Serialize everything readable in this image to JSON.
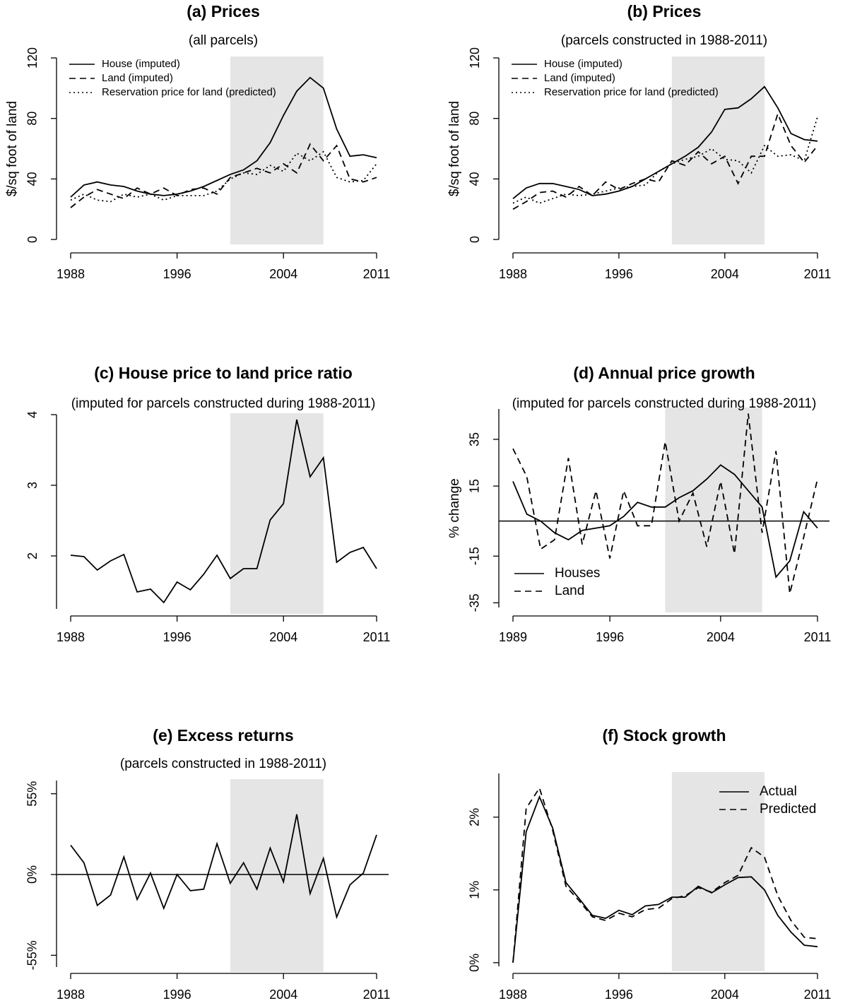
{
  "chart_data": [
    {
      "type": "line",
      "title": "(a) Prices",
      "subtitle": "(all parcels)",
      "y_label": "$/sq foot of land",
      "x": [
        1988,
        1989,
        1990,
        1991,
        1992,
        1993,
        1994,
        1995,
        1996,
        1997,
        1998,
        1999,
        2000,
        2001,
        2002,
        2003,
        2004,
        2005,
        2006,
        2007,
        2008,
        2009,
        2010,
        2011
      ],
      "series": [
        {
          "name": "House (imputed)",
          "color": "#000000",
          "linestyle": "solid",
          "values": [
            28,
            36,
            38,
            36,
            35,
            32,
            30,
            29,
            30,
            32,
            35,
            39,
            43,
            46,
            52,
            64,
            82,
            98,
            107,
            100,
            73,
            55,
            56,
            54
          ]
        },
        {
          "name": "Land (imputed)",
          "color": "#000000",
          "linestyle": "dashed",
          "values": [
            21,
            28,
            33,
            30,
            27,
            34,
            30,
            34,
            29,
            33,
            34,
            30,
            41,
            44,
            47,
            44,
            50,
            44,
            63,
            52,
            62,
            40,
            38,
            41
          ]
        },
        {
          "name": "Reservation price for land (predicted)",
          "color": "#000000",
          "linestyle": "dotted",
          "values": [
            26,
            30,
            26,
            25,
            30,
            28,
            30,
            26,
            29,
            29,
            29,
            32,
            40,
            44,
            43,
            49,
            45,
            57,
            52,
            58,
            41,
            38,
            39,
            50
          ]
        }
      ],
      "xlim": [
        1988,
        2011
      ],
      "xticks": [
        1988,
        1996,
        2004,
        2011
      ],
      "ylim": [
        0,
        120
      ],
      "yticks": [
        0,
        40,
        80,
        120
      ],
      "shaded_range": [
        2000,
        2007
      ],
      "legend": "topleft"
    },
    {
      "type": "line",
      "title": "(b) Prices",
      "subtitle": "(parcels constructed in 1988-2011)",
      "y_label": "$/sq foot of land",
      "x": [
        1988,
        1989,
        1990,
        1991,
        1992,
        1993,
        1994,
        1995,
        1996,
        1997,
        1998,
        1999,
        2000,
        2001,
        2002,
        2003,
        2004,
        2005,
        2006,
        2007,
        2008,
        2009,
        2010,
        2011
      ],
      "series": [
        {
          "name": "House (imputed)",
          "color": "#000000",
          "linestyle": "solid",
          "values": [
            27,
            34,
            37,
            37,
            35,
            33,
            29,
            30,
            32,
            35,
            40,
            45,
            50,
            55,
            61,
            71,
            86,
            87,
            93,
            101,
            87,
            70,
            66,
            65
          ]
        },
        {
          "name": "Land (imputed)",
          "color": "#000000",
          "linestyle": "dashed",
          "values": [
            20,
            25,
            31,
            32,
            28,
            35,
            29,
            38,
            33,
            37,
            40,
            38,
            52,
            49,
            58,
            50,
            55,
            37,
            55,
            55,
            83,
            62,
            51,
            62
          ]
        },
        {
          "name": "Reservation price for land (predicted)",
          "color": "#000000",
          "linestyle": "dotted",
          "values": [
            24,
            28,
            24,
            27,
            30,
            29,
            30,
            32,
            34,
            35,
            36,
            45,
            50,
            53,
            55,
            60,
            53,
            52,
            44,
            62,
            55,
            56,
            52,
            81
          ]
        }
      ],
      "xlim": [
        1988,
        2011
      ],
      "xticks": [
        1988,
        1996,
        2004,
        2011
      ],
      "ylim": [
        0,
        120
      ],
      "yticks": [
        0,
        40,
        80,
        120
      ],
      "shaded_range": [
        2000,
        2007
      ],
      "legend": "topleft"
    },
    {
      "type": "line",
      "title": "(c) House price to land price ratio",
      "subtitle": "(imputed for parcels constructed during 1988-2011)",
      "x": [
        1988,
        1989,
        1990,
        1991,
        1992,
        1993,
        1994,
        1995,
        1996,
        1997,
        1998,
        1999,
        2000,
        2001,
        2002,
        2003,
        2004,
        2005,
        2006,
        2007,
        2008,
        2009,
        2010,
        2011
      ],
      "series": [
        {
          "color": "#000000",
          "linestyle": "solid",
          "values": [
            2.01,
            1.99,
            1.8,
            1.93,
            2.02,
            1.49,
            1.53,
            1.34,
            1.63,
            1.52,
            1.74,
            2.01,
            1.68,
            1.82,
            1.82,
            2.51,
            2.74,
            3.93,
            3.12,
            3.39,
            1.91,
            2.05,
            2.12,
            1.82
          ]
        }
      ],
      "xlim": [
        1988,
        2011
      ],
      "xticks": [
        1988,
        1996,
        2004,
        2011
      ],
      "ylim": [
        1.25,
        4
      ],
      "yticks": [
        2,
        3,
        4
      ],
      "shaded_range": [
        2000,
        2007
      ]
    },
    {
      "type": "line",
      "title": "(d) Annual price growth",
      "subtitle": "(imputed for parcels constructed during 1988-2011)",
      "y_label": "% change",
      "x": [
        1989,
        1990,
        1991,
        1992,
        1993,
        1994,
        1995,
        1996,
        1997,
        1998,
        1999,
        2000,
        2001,
        2002,
        2003,
        2004,
        2005,
        2006,
        2007,
        2008,
        2009,
        2010,
        2011
      ],
      "series": [
        {
          "name": "Houses",
          "color": "#000000",
          "linestyle": "solid",
          "values": [
            17,
            3,
            0,
            -5,
            -8,
            -4,
            -3,
            -2,
            2,
            8,
            6,
            6,
            10,
            13,
            18,
            24,
            20,
            13,
            6,
            -24,
            -17,
            4,
            -3
          ]
        },
        {
          "name": "Land",
          "color": "#000000",
          "linestyle": "dashed",
          "values": [
            31,
            19,
            -12,
            -8,
            27,
            -10,
            13,
            -16,
            13,
            -2,
            -2,
            34,
            0,
            12,
            -11,
            17,
            -14,
            46,
            -5,
            30,
            -31,
            -7,
            18
          ]
        }
      ],
      "xlim": [
        1989,
        2011
      ],
      "xticks": [
        1989,
        1996,
        2004,
        2011
      ],
      "ylim": [
        -37,
        48
      ],
      "yticks": [
        -35,
        -15,
        15,
        35
      ],
      "hline": 0,
      "shaded_range": [
        2000,
        2007
      ],
      "legend": "bottomleft"
    },
    {
      "type": "line",
      "title": "(e) Excess returns",
      "subtitle": "(parcels constructed in 1988-2011)",
      "x": [
        1988,
        1989,
        1990,
        1991,
        1992,
        1993,
        1994,
        1995,
        1996,
        1997,
        1998,
        1999,
        2000,
        2001,
        2002,
        2003,
        2004,
        2005,
        2006,
        2007,
        2008,
        2009,
        2010,
        2011
      ],
      "series": [
        {
          "color": "#000000",
          "linestyle": "solid",
          "values": [
            20,
            8,
            -21,
            -14,
            12,
            -17,
            1,
            -23,
            0,
            -11,
            -10,
            21,
            -6,
            8,
            -10,
            18,
            -5,
            41,
            -13,
            11,
            -29,
            -7,
            1,
            27
          ]
        }
      ],
      "xlim": [
        1988,
        2011
      ],
      "xticks": [
        1988,
        1996,
        2004,
        2011
      ],
      "ylim": [
        -63,
        64
      ],
      "yticks": [
        {
          "value": -55,
          "label": "-55%"
        },
        {
          "value": 0,
          "label": "0%"
        },
        {
          "value": 55,
          "label": "55%"
        }
      ],
      "hline": 0,
      "shaded_range": [
        2000,
        2007
      ]
    },
    {
      "type": "line",
      "title": "(f) Stock growth",
      "x": [
        1988,
        1989,
        1990,
        1991,
        1992,
        1993,
        1994,
        1995,
        1996,
        1997,
        1998,
        1999,
        2000,
        2001,
        2002,
        2003,
        2004,
        2005,
        2006,
        2007,
        2008,
        2009,
        2010,
        2011
      ],
      "series": [
        {
          "name": "Actual",
          "color": "#000000",
          "linestyle": "solid",
          "values": [
            0.0,
            1.8,
            2.28,
            1.85,
            1.1,
            0.88,
            0.65,
            0.61,
            0.72,
            0.66,
            0.78,
            0.8,
            0.9,
            0.9,
            1.05,
            0.96,
            1.07,
            1.17,
            1.18,
            1.0,
            0.65,
            0.42,
            0.24,
            0.22
          ]
        },
        {
          "name": "Predicted",
          "color": "#000000",
          "linestyle": "dashed",
          "values": [
            0.0,
            2.12,
            2.4,
            1.82,
            1.05,
            0.85,
            0.63,
            0.58,
            0.68,
            0.63,
            0.73,
            0.75,
            0.88,
            0.92,
            1.03,
            0.97,
            1.1,
            1.2,
            1.58,
            1.45,
            0.92,
            0.58,
            0.35,
            0.33
          ]
        }
      ],
      "xlim": [
        1988,
        2011
      ],
      "xticks": [
        1988,
        1996,
        2004,
        2011
      ],
      "ylim": [
        -0.05,
        2.6
      ],
      "yticks": [
        {
          "value": 0,
          "label": "0%"
        },
        {
          "value": 1,
          "label": "1%"
        },
        {
          "value": 2,
          "label": "2%"
        }
      ],
      "shaded_range": [
        2000,
        2007
      ],
      "legend": "topright"
    }
  ]
}
